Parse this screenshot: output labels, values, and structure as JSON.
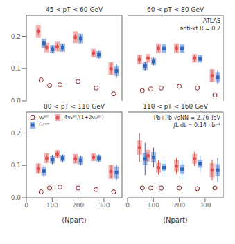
{
  "chart_data": [
    {
      "type": "scatter",
      "title": "45 < pT < 60 GeV",
      "tick_labels": "y",
      "x": [
        57,
        90,
        130,
        200,
        270,
        338
      ],
      "xlim": [
        0,
        370
      ],
      "ylim": [
        0,
        0.265
      ],
      "xticks": [
        0,
        100,
        200,
        300
      ],
      "yticks": [
        {
          "value": 0.0,
          "label": "0.0"
        },
        0.1,
        0.2
      ],
      "series": [
        {
          "name": "v₂ʲᵉᵗ",
          "color": "#8b1a1a",
          "marker": "open_circle",
          "values": [
            0.065,
            0.048,
            0.05,
            0.06,
            0.04,
            0.022
          ]
        },
        {
          "name": "4v₂ʲᵉᵗ/(1+2v₂ʲᵉᵗ)",
          "color": "#e05050",
          "marker": "circle",
          "values": [
            0.215,
            0.165,
            0.168,
            0.197,
            0.148,
            0.1
          ],
          "stat_errors": [
            0.01,
            0.008,
            0.008,
            0.01,
            0.01,
            0.018
          ],
          "sys_errors": [
            0.02,
            0.015,
            0.015,
            0.018,
            0.013,
            0.02
          ]
        },
        {
          "name": "f₂ᶜᵒʳʳ",
          "color": "#3366bb",
          "marker": "square",
          "values": [
            0.178,
            0.16,
            0.165,
            0.193,
            0.143,
            0.093
          ],
          "stat_errors": [
            0.012,
            0.01,
            0.01,
            0.012,
            0.012,
            0.022
          ],
          "sys_errors": [
            0.015,
            0.013,
            0.013,
            0.015,
            0.011,
            0.016
          ]
        }
      ]
    },
    {
      "type": "scatter",
      "title": "60 < pT < 80 GeV",
      "tick_labels": false,
      "annotations": [
        "ATLAS",
        "anti-kt R = 0.2"
      ],
      "x": [
        57,
        90,
        130,
        200,
        270,
        338
      ],
      "xlim": [
        0,
        370
      ],
      "ylim": [
        0,
        0.265
      ],
      "xticks": [
        0,
        100,
        200,
        300
      ],
      "yticks": [
        {
          "value": 0.0,
          "label": "0.0"
        },
        0.1,
        0.2
      ],
      "series": [
        {
          "name": "v₂ʲᵉᵗ",
          "color": "#8b1a1a",
          "marker": "open_circle",
          "values": [
            0.032,
            0.037,
            0.04,
            0.045,
            0.04,
            0.018
          ]
        },
        {
          "name": "4v₂ʲᵉᵗ/(1+2v₂ʲᵉᵗ)",
          "color": "#e05050",
          "marker": "circle",
          "values": [
            0.128,
            0.132,
            0.163,
            0.163,
            0.132,
            0.078
          ],
          "stat_errors": [
            0.012,
            0.01,
            0.01,
            0.01,
            0.01,
            0.018
          ],
          "sys_errors": [
            0.015,
            0.013,
            0.015,
            0.015,
            0.013,
            0.02
          ]
        },
        {
          "name": "f₂ᶜᵒʳʳ",
          "color": "#3366bb",
          "marker": "square",
          "values": [
            0.108,
            0.122,
            0.162,
            0.162,
            0.13,
            0.073
          ],
          "stat_errors": [
            0.014,
            0.012,
            0.012,
            0.012,
            0.012,
            0.022
          ],
          "sys_errors": [
            0.012,
            0.011,
            0.013,
            0.013,
            0.011,
            0.016
          ]
        }
      ]
    },
    {
      "type": "scatter",
      "title": "80 < pT < 110 GeV",
      "xlabel": "⟨Npart⟩",
      "legend": "upper left",
      "x": [
        57,
        90,
        130,
        200,
        270,
        338
      ],
      "xlim": [
        0,
        370
      ],
      "ylim": [
        0,
        0.265
      ],
      "xticks": [
        0,
        100,
        200,
        300
      ],
      "yticks": [
        {
          "value": 0.0,
          "label": "0.0"
        },
        0.1,
        0.2
      ],
      "series": [
        {
          "name": "v₂ʲᵉᵗ",
          "color": "#8b1a1a",
          "marker": "open_circle",
          "values": [
            0.018,
            0.03,
            0.033,
            0.03,
            0.025,
            0.018
          ]
        },
        {
          "name": "4v₂ʲᵉᵗ/(1+2v₂ʲᵉᵗ)",
          "color": "#e05050",
          "marker": "circle",
          "values": [
            0.09,
            0.122,
            0.135,
            0.12,
            0.125,
            0.08
          ],
          "stat_errors": [
            0.015,
            0.012,
            0.01,
            0.012,
            0.01,
            0.02
          ],
          "sys_errors": [
            0.016,
            0.015,
            0.012,
            0.015,
            0.012,
            0.022
          ]
        },
        {
          "name": "f₂ᶜᵒʳʳ",
          "color": "#3366bb",
          "marker": "square",
          "values": [
            0.082,
            0.118,
            0.122,
            0.115,
            0.122,
            0.078
          ],
          "stat_errors": [
            0.018,
            0.015,
            0.012,
            0.015,
            0.012,
            0.024
          ],
          "sys_errors": [
            0.013,
            0.012,
            0.01,
            0.012,
            0.01,
            0.019
          ]
        }
      ]
    },
    {
      "type": "scatter",
      "title": "110 < pT < 160 GeV",
      "xlabel": "⟨Npart⟩",
      "tick_labels": "x",
      "annotations": [
        "Pb+Pb √sNN = 2.76 TeV",
        "∫L dt = 0.14 nb⁻¹"
      ],
      "x": [
        57,
        90,
        130,
        200,
        270,
        338
      ],
      "xlim": [
        0,
        370
      ],
      "ylim": [
        0,
        0.265
      ],
      "xticks": [
        0,
        100,
        200,
        300
      ],
      "yticks": [
        {
          "value": 0.0,
          "label": "0.0"
        },
        0.1,
        0.2
      ],
      "series": [
        {
          "name": "v₂ʲᵉᵗ",
          "color": "#8b1a1a",
          "marker": "open_circle",
          "values": [
            0.03,
            0.03,
            0.03,
            0.03,
            0.028,
            0.03
          ]
        },
        {
          "name": "4v₂ʲᵉᵗ/(1+2v₂ʲᵉᵗ)",
          "color": "#e05050",
          "marker": "circle",
          "values": [
            0.155,
            0.13,
            0.093,
            0.098,
            0.12,
            0.085
          ],
          "stat_errors": [
            0.045,
            0.028,
            0.022,
            0.025,
            0.022,
            0.032
          ],
          "sys_errors": [
            0.022,
            0.018,
            0.015,
            0.018,
            0.015,
            0.022
          ]
        },
        {
          "name": "f₂ᶜᵒʳʳ",
          "color": "#3366bb",
          "marker": "square",
          "values": [
            0.12,
            0.125,
            0.093,
            0.088,
            0.105,
            0.085
          ],
          "stat_errors": [
            0.05,
            0.03,
            0.025,
            0.03,
            0.025,
            0.038
          ],
          "sys_errors": [
            0.019,
            0.016,
            0.012,
            0.015,
            0.012,
            0.019
          ]
        }
      ]
    }
  ]
}
